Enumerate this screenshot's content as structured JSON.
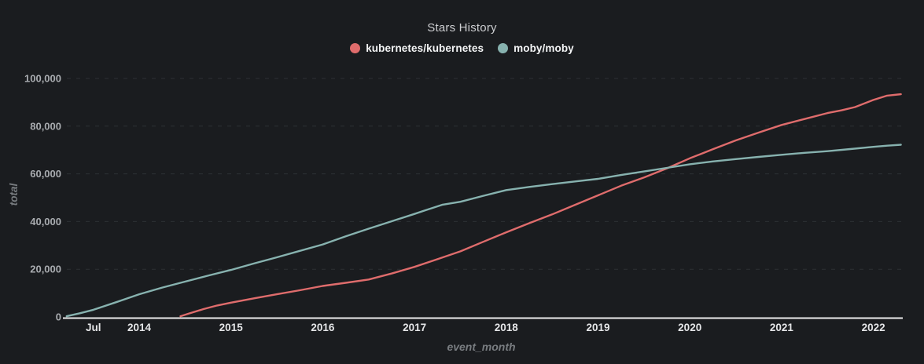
{
  "title": "Stars History",
  "legend": [
    {
      "label": "kubernetes/kubernetes",
      "color": "#df6c6c"
    },
    {
      "label": "moby/moby",
      "color": "#87b2af"
    }
  ],
  "axes": {
    "y_label": "total",
    "x_label": "event_month",
    "y_ticks": [
      {
        "pos": 0,
        "label": "0"
      },
      {
        "pos": 20000,
        "label": "20,000"
      },
      {
        "pos": 40000,
        "label": "40,000"
      },
      {
        "pos": 60000,
        "label": "60,000"
      },
      {
        "pos": 80000,
        "label": "80,000"
      },
      {
        "pos": 100000,
        "label": "100,000"
      }
    ],
    "x_ticks": [
      {
        "pos": 2013.5,
        "label": "Jul"
      },
      {
        "pos": 2014,
        "label": "2014"
      },
      {
        "pos": 2015,
        "label": "2015"
      },
      {
        "pos": 2016,
        "label": "2016"
      },
      {
        "pos": 2017,
        "label": "2017"
      },
      {
        "pos": 2018,
        "label": "2018"
      },
      {
        "pos": 2019,
        "label": "2019"
      },
      {
        "pos": 2020,
        "label": "2020"
      },
      {
        "pos": 2021,
        "label": "2021"
      },
      {
        "pos": 2022,
        "label": "2022"
      }
    ]
  },
  "colors": {
    "background": "#1a1c1f",
    "title_text": "#cdced1",
    "legend_text": "#f4f5f6",
    "series_kubernetes": "#df6c6c",
    "series_moby": "#87b2af",
    "axis_line": "#ececed",
    "grid_line": "#2d3034",
    "x_tick_text": "#e5e6e8",
    "y_tick_text": "#a9acb0",
    "axis_title_text": "#797d81"
  },
  "chart_data": {
    "type": "line",
    "title": "Stars History",
    "xlabel": "event_month",
    "ylabel": "total",
    "x_range": [
      2013.21,
      2022.3
    ],
    "ylim": [
      0,
      100000
    ],
    "grid": "horizontal dashed",
    "legend_position": "top-center",
    "series": [
      {
        "name": "kubernetes/kubernetes",
        "color": "#df6c6c",
        "points": [
          [
            2014.45,
            300
          ],
          [
            2014.55,
            1500
          ],
          [
            2014.7,
            3300
          ],
          [
            2014.85,
            4800
          ],
          [
            2015.0,
            6000
          ],
          [
            2015.25,
            7800
          ],
          [
            2015.5,
            9500
          ],
          [
            2015.75,
            11200
          ],
          [
            2016.0,
            13000
          ],
          [
            2016.25,
            14300
          ],
          [
            2016.5,
            15700
          ],
          [
            2016.75,
            18200
          ],
          [
            2017.0,
            21000
          ],
          [
            2017.25,
            24200
          ],
          [
            2017.5,
            27500
          ],
          [
            2017.75,
            31500
          ],
          [
            2018.0,
            35500
          ],
          [
            2018.25,
            39300
          ],
          [
            2018.5,
            43000
          ],
          [
            2018.75,
            47000
          ],
          [
            2019.0,
            51000
          ],
          [
            2019.25,
            55000
          ],
          [
            2019.5,
            58500
          ],
          [
            2019.75,
            62300
          ],
          [
            2020.0,
            66500
          ],
          [
            2020.25,
            70300
          ],
          [
            2020.5,
            74000
          ],
          [
            2020.75,
            77300
          ],
          [
            2021.0,
            80500
          ],
          [
            2021.25,
            83000
          ],
          [
            2021.5,
            85500
          ],
          [
            2021.65,
            86600
          ],
          [
            2021.8,
            88000
          ],
          [
            2022.0,
            91000
          ],
          [
            2022.15,
            92800
          ],
          [
            2022.3,
            93400
          ]
        ]
      },
      {
        "name": "moby/moby",
        "color": "#87b2af",
        "points": [
          [
            2013.21,
            300
          ],
          [
            2013.35,
            1500
          ],
          [
            2013.5,
            3000
          ],
          [
            2013.75,
            6200
          ],
          [
            2014.0,
            9500
          ],
          [
            2014.25,
            12300
          ],
          [
            2014.5,
            14800
          ],
          [
            2014.75,
            17300
          ],
          [
            2015.0,
            19700
          ],
          [
            2015.25,
            22400
          ],
          [
            2015.5,
            25000
          ],
          [
            2015.75,
            27700
          ],
          [
            2016.0,
            30400
          ],
          [
            2016.25,
            33800
          ],
          [
            2016.5,
            37000
          ],
          [
            2016.75,
            40100
          ],
          [
            2017.0,
            43200
          ],
          [
            2017.1,
            44500
          ],
          [
            2017.3,
            47000
          ],
          [
            2017.5,
            48300
          ],
          [
            2017.75,
            50800
          ],
          [
            2018.0,
            53200
          ],
          [
            2018.25,
            54500
          ],
          [
            2018.5,
            55700
          ],
          [
            2018.75,
            56800
          ],
          [
            2019.0,
            57900
          ],
          [
            2019.25,
            59500
          ],
          [
            2019.5,
            61000
          ],
          [
            2019.75,
            62500
          ],
          [
            2020.0,
            64000
          ],
          [
            2020.25,
            65200
          ],
          [
            2020.5,
            66200
          ],
          [
            2020.75,
            67100
          ],
          [
            2021.0,
            68000
          ],
          [
            2021.25,
            68800
          ],
          [
            2021.5,
            69500
          ],
          [
            2021.75,
            70400
          ],
          [
            2022.0,
            71300
          ],
          [
            2022.15,
            71800
          ],
          [
            2022.3,
            72200
          ]
        ]
      }
    ]
  }
}
